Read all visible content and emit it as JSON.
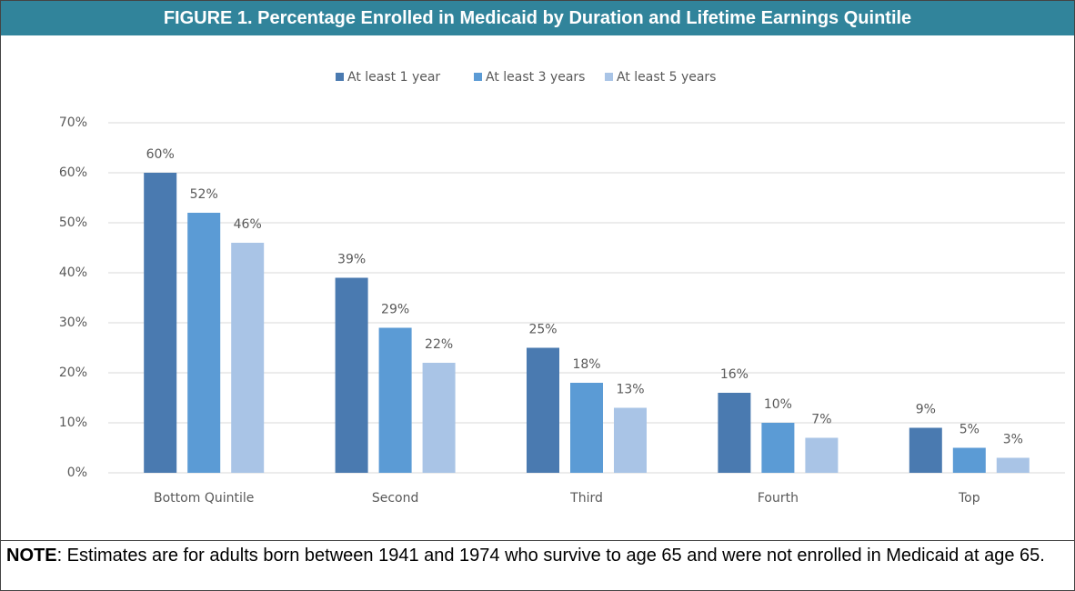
{
  "chart_data": {
    "type": "bar",
    "title": "FIGURE 1. Percentage Enrolled in Medicaid by Duration and Lifetime Earnings Quintile",
    "categories": [
      "Bottom Quintile",
      "Second",
      "Third",
      "Fourth",
      "Top"
    ],
    "series": [
      {
        "name": "At least 1 year",
        "color": "#4a7ab0",
        "values": [
          60,
          39,
          25,
          16,
          9
        ],
        "value_labels": [
          "60%",
          "39%",
          "25%",
          "16%",
          "9%"
        ]
      },
      {
        "name": "At least 3 years",
        "color": "#5b9bd5",
        "values": [
          52,
          29,
          18,
          10,
          5
        ],
        "value_labels": [
          "52%",
          "29%",
          "18%",
          "10%",
          "5%"
        ]
      },
      {
        "name": "At least 5 years",
        "color": "#a9c4e6",
        "values": [
          46,
          22,
          13,
          7,
          3
        ],
        "value_labels": [
          "46%",
          "22%",
          "13%",
          "7%",
          "3%"
        ]
      }
    ],
    "ylim": [
      0,
      70
    ],
    "yticks": [
      {
        "value": 0,
        "label": "0%"
      },
      {
        "value": 10,
        "label": "10%"
      },
      {
        "value": 20,
        "label": "20%"
      },
      {
        "value": 30,
        "label": "30%"
      },
      {
        "value": 40,
        "label": "40%"
      },
      {
        "value": 50,
        "label": "50%"
      },
      {
        "value": 60,
        "label": "60%"
      },
      {
        "value": 70,
        "label": "70%"
      }
    ],
    "grid": true,
    "legend": "top"
  },
  "note": {
    "label": "NOTE",
    "text": ":  Estimates are for adults born between 1941 and 1974 who survive to age 65 and were not enrolled in Medicaid at age 65."
  }
}
